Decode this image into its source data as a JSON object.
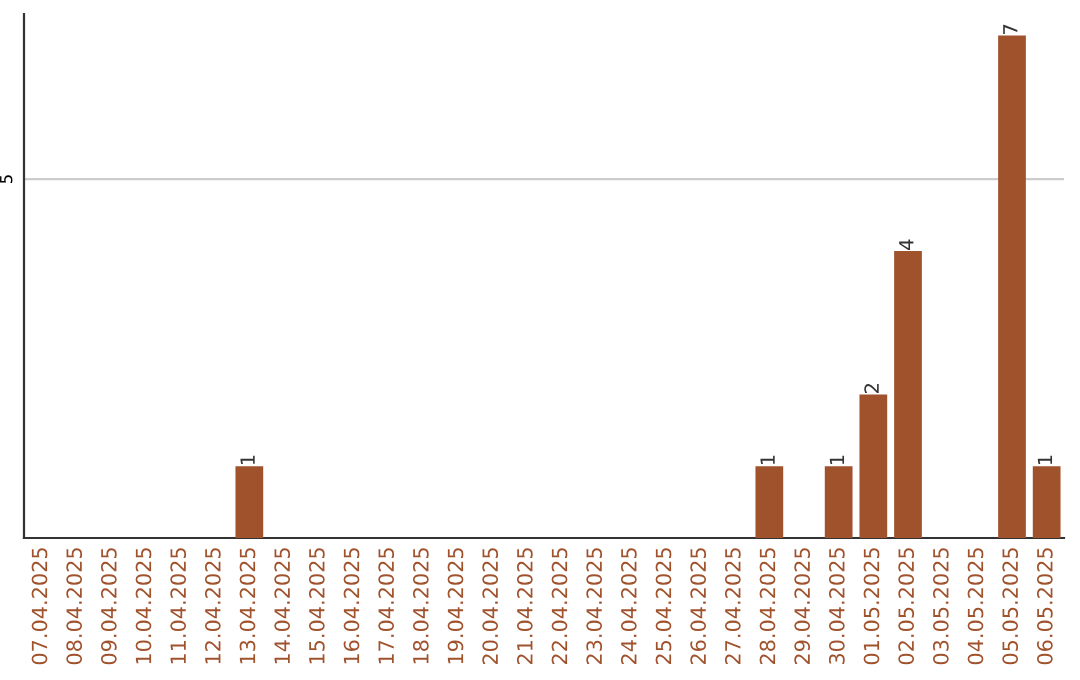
{
  "chart_data": {
    "type": "bar",
    "categories": [
      "07.04.2025",
      "08.04.2025",
      "09.04.2025",
      "10.04.2025",
      "11.04.2025",
      "12.04.2025",
      "13.04.2025",
      "14.04.2025",
      "15.04.2025",
      "16.04.2025",
      "17.04.2025",
      "18.04.2025",
      "19.04.2025",
      "20.04.2025",
      "21.04.2025",
      "22.04.2025",
      "23.04.2025",
      "24.04.2025",
      "25.04.2025",
      "26.04.2025",
      "27.04.2025",
      "28.04.2025",
      "29.04.2025",
      "30.04.2025",
      "01.05.2025",
      "02.05.2025",
      "03.05.2025",
      "04.05.2025",
      "05.05.2025",
      "06.05.2025"
    ],
    "values": [
      0,
      0,
      0,
      0,
      0,
      0,
      1,
      0,
      0,
      0,
      0,
      0,
      0,
      0,
      0,
      0,
      0,
      0,
      0,
      0,
      0,
      1,
      0,
      1,
      2,
      4,
      0,
      0,
      7,
      1
    ],
    "value_labels": [
      null,
      null,
      null,
      null,
      null,
      null,
      "1",
      null,
      null,
      null,
      null,
      null,
      null,
      null,
      null,
      null,
      null,
      null,
      null,
      null,
      null,
      "1",
      null,
      "1",
      "2",
      "4",
      null,
      null,
      "7",
      "1"
    ],
    "color": "#a0522d",
    "ylim": [
      0,
      7.3
    ],
    "yticks": [
      5
    ],
    "grid": "y"
  }
}
